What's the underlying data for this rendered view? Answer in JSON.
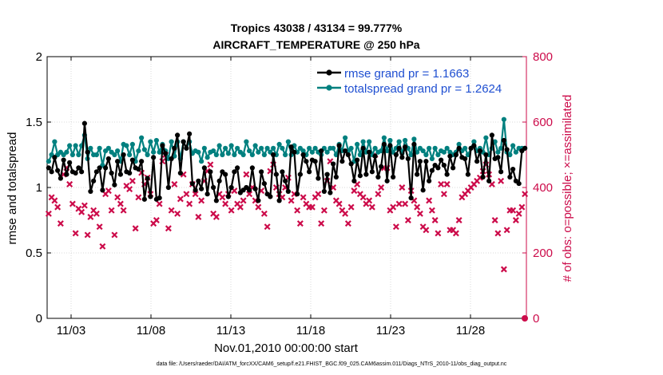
{
  "chart_data": {
    "type": "line",
    "title": "Tropics 43038 / 43134 = 99.777%",
    "subtitle": "AIRCRAFT_TEMPERATURE @ 250 hPa",
    "xlabel": "Nov.01,2010 00:00:00 start",
    "ylabel": "rmse and totalspread",
    "ylabel_right": "# of obs: o=possible; ×=assimilated",
    "xlim": [
      0.5,
      30.5
    ],
    "ylim": [
      0,
      2
    ],
    "ylim_right": [
      0,
      800
    ],
    "x_ticks": [
      2,
      7,
      12,
      17,
      22,
      27
    ],
    "x_tick_labels": [
      "11/03",
      "11/08",
      "11/13",
      "11/18",
      "11/23",
      "11/28"
    ],
    "y_ticks": [
      0,
      0.5,
      1,
      1.5,
      2
    ],
    "y_tick_labels": [
      "0",
      "0.5",
      "1",
      "1.5",
      "2"
    ],
    "y_right_ticks": [
      0,
      200,
      400,
      600,
      800
    ],
    "y_right_tick_labels": [
      "0",
      "200",
      "400",
      "600",
      "800"
    ],
    "legend_location": "top-right",
    "footnote": "data file: /Users/raeder/DAI/ATM_forcXX/CAM6_setup/f.e21.FHIST_BGC.f09_025.CAM6assim.011/Diags_NTrS_2010-11/obs_diag_output.nc",
    "series": [
      {
        "name": "rmse grand pr = 1.1663",
        "color": "#000000",
        "axis": "left",
        "values": [
          1.15,
          1.12,
          1.23,
          1.13,
          1.07,
          1.21,
          1.1,
          1.19,
          1.12,
          1.11,
          1.15,
          1.12,
          1.49,
          1.27,
          0.97,
          1.05,
          1.12,
          1.15,
          0.98,
          1.15,
          1.22,
          1.11,
          1.02,
          1.2,
          1.1,
          1.25,
          1.12,
          1.11,
          1.21,
          1.15,
          1.14,
          1.2,
          0.91,
          1.07,
          0.93,
          1.23,
          0.91,
          0.92,
          1.32,
          1.26,
          1.0,
          1.22,
          1.3,
          1.4,
          1.11,
          1.35,
          1.3,
          1.41,
          1.03,
          0.98,
          1.05,
          0.99,
          1.15,
          0.95,
          1.12,
          1.0,
          0.9,
          1.05,
          1.12,
          1.1,
          0.93,
          1.0,
          1.12,
          1.15,
          0.96,
          0.98,
          1.0,
          0.98,
          1.15,
          0.99,
          0.9,
          1.12,
          1.03,
          0.95,
          0.93,
          1.25,
          1.1,
          0.9,
          1.12,
          1.05,
          0.97,
          1.31,
          1.27,
          0.95,
          1.1,
          1.25,
          1.2,
          1.12,
          1.21,
          1.2,
          1.07,
          1.28,
          0.97,
          1.1,
          0.96,
          1.18,
          1.08,
          1.32,
          1.2,
          1.28,
          1.25,
          1.18,
          1.05,
          1.21,
          1.09,
          1.3,
          1.1,
          1.27,
          1.12,
          1.24,
          1.08,
          1.16,
          1.33,
          1.05,
          1.32,
          1.08,
          1.25,
          1.3,
          1.23,
          1.31,
          1.22,
          0.92,
          1.33,
          1.1,
          1.2,
          0.98,
          1.2,
          1.05,
          1.13,
          1.17,
          1.15,
          1.21,
          1.17,
          1.1,
          1.24,
          1.15,
          1.25,
          1.3,
          1.23,
          1.22,
          1.1,
          1.3,
          1.32,
          1.2,
          1.28,
          1.08,
          1.25,
          1.05,
          1.4,
          1.22,
          1.23,
          1.12,
          1.36,
          1.29,
          1.08,
          1.14,
          1.05,
          1.03,
          1.28,
          1.3
        ]
      },
      {
        "name": "totalspread grand pr = 1.2624",
        "color": "#00807f",
        "axis": "left",
        "values": [
          1.2,
          1.25,
          1.35,
          1.25,
          1.27,
          1.25,
          1.27,
          1.32,
          1.25,
          1.32,
          1.25,
          1.32,
          1.4,
          1.22,
          1.3,
          1.25,
          1.25,
          1.3,
          1.17,
          1.28,
          1.3,
          1.27,
          1.25,
          1.28,
          1.2,
          1.33,
          1.32,
          1.25,
          1.33,
          1.2,
          1.28,
          1.38,
          1.29,
          1.25,
          1.35,
          1.27,
          1.36,
          1.27,
          1.33,
          1.28,
          1.22,
          1.35,
          1.24,
          1.35,
          1.22,
          1.35,
          1.3,
          1.35,
          1.26,
          1.28,
          1.27,
          1.2,
          1.3,
          1.23,
          1.27,
          1.28,
          1.25,
          1.32,
          1.25,
          1.3,
          1.26,
          1.32,
          1.25,
          1.3,
          1.27,
          1.25,
          1.35,
          1.28,
          1.25,
          1.32,
          1.27,
          1.3,
          1.25,
          1.3,
          1.27,
          1.3,
          1.25,
          1.33,
          1.3,
          1.25,
          1.35,
          1.25,
          1.32,
          1.27,
          1.3,
          1.28,
          1.25,
          1.3,
          1.27,
          1.3,
          1.27,
          1.25,
          1.3,
          1.27,
          1.3,
          1.3,
          1.25,
          1.33,
          1.28,
          1.38,
          1.28,
          1.3,
          1.2,
          1.33,
          1.25,
          1.35,
          1.27,
          1.35,
          1.25,
          1.3,
          1.27,
          1.28,
          1.38,
          1.28,
          1.36,
          1.27,
          1.3,
          1.35,
          1.26,
          1.36,
          1.3,
          1.25,
          1.37,
          1.27,
          1.3,
          1.28,
          1.25,
          1.3,
          1.22,
          1.3,
          1.25,
          1.28,
          1.27,
          1.3,
          1.27,
          1.25,
          1.27,
          1.33,
          1.28,
          1.3,
          1.25,
          1.3,
          1.35,
          1.28,
          1.3,
          1.27,
          1.38,
          1.25,
          1.3,
          1.35,
          1.27,
          1.3,
          1.52,
          1.27,
          1.25,
          1.32,
          1.27,
          1.3,
          1.3,
          1.3
        ]
      },
      {
        "name": "# of obs assimilated",
        "color": "#cc0b4a",
        "axis": "right",
        "marker": "×",
        "values": [
          320,
          370,
          360,
          340,
          290,
          440,
          460,
          410,
          350,
          260,
          335,
          325,
          345,
          255,
          310,
          330,
          320,
          280,
          220,
          380,
          390,
          330,
          255,
          370,
          350,
          330,
          405,
          395,
          420,
          275,
          370,
          445,
          410,
          430,
          380,
          290,
          300,
          350,
          480,
          500,
          275,
          330,
          410,
          320,
          365,
          440,
          380,
          350,
          410,
          380,
          310,
          360,
          420,
          450,
          470,
          320,
          310,
          380,
          370,
          350,
          380,
          330,
          390,
          350,
          340,
          360,
          440,
          380,
          400,
          360,
          340,
          390,
          320,
          280,
          450,
          470,
          400,
          380,
          370,
          400,
          430,
          360,
          380,
          330,
          290,
          370,
          350,
          340,
          340,
          370,
          380,
          290,
          330,
          420,
          480,
          400,
          360,
          350,
          330,
          320,
          290,
          340,
          390,
          410,
          380,
          370,
          350,
          360,
          340,
          500,
          380,
          400,
          460,
          460,
          330,
          340,
          280,
          350,
          400,
          350,
          300,
          390,
          360,
          340,
          320,
          280,
          270,
          360,
          330,
          300,
          260,
          410,
          380,
          410,
          270,
          270,
          260,
          300,
          370,
          380,
          390,
          400,
          410,
          420,
          430,
          450,
          470,
          440,
          410,
          300,
          260,
          420,
          150,
          270,
          330,
          330,
          300,
          320,
          340,
          380
        ]
      }
    ]
  }
}
